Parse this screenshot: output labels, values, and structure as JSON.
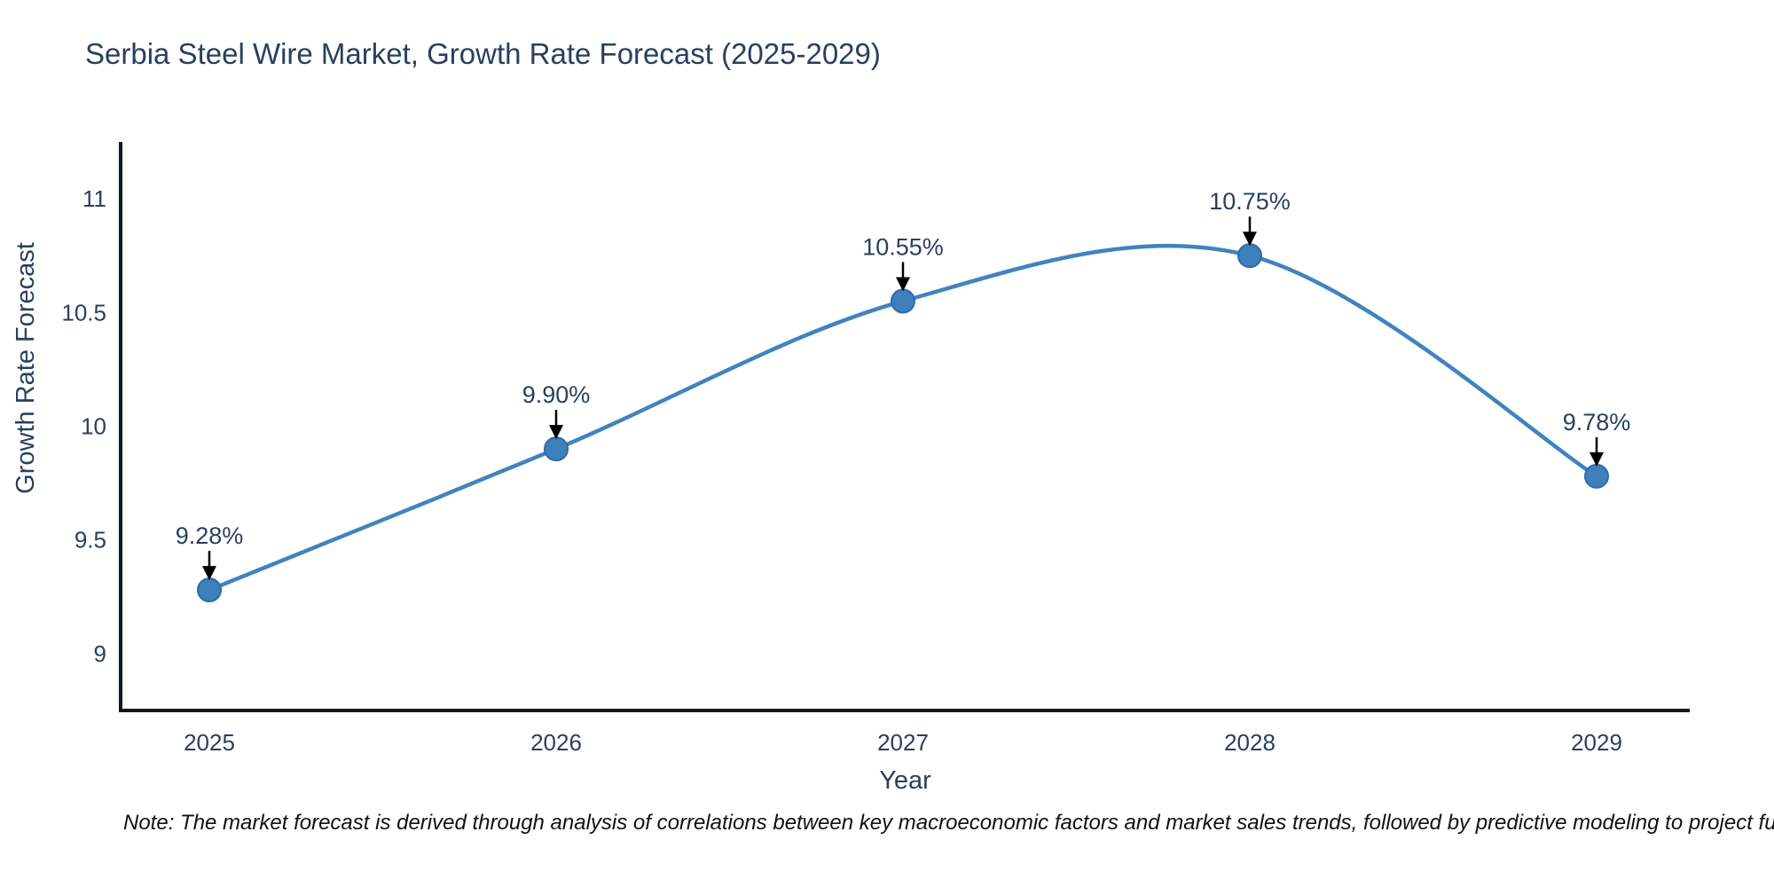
{
  "figure": {
    "title": "Serbia Steel Wire Market, Growth Rate Forecast (2025-2029)",
    "note": "Note: The market forecast is derived through analysis of correlations between key macroeconomic factors and market sales trends, followed by predictive modeling to project future sales."
  },
  "colors": {
    "text": "#2a3f5f",
    "axis_line": "#111827",
    "line": "#4183bd",
    "marker_fill": "#3d80ba",
    "marker_edge": "#2e6ca8",
    "arrow": "#000000",
    "note_text": "#111111",
    "background": "#ffffff"
  },
  "chart_data": {
    "type": "line",
    "line_shape": "spline",
    "title": "Serbia Steel Wire Market, Growth Rate Forecast (2025-2029)",
    "x": [
      "2025",
      "2026",
      "2027",
      "2028",
      "2029"
    ],
    "series": [
      {
        "name": "Growth Rate Forecast",
        "values": [
          9.28,
          9.9,
          10.55,
          10.75,
          9.78
        ]
      }
    ],
    "point_labels": [
      "9.28%",
      "9.90%",
      "10.55%",
      "10.75%",
      "9.78%"
    ],
    "xlabel": "Year",
    "ylabel": "Growth Rate Forecast",
    "yticks": [
      9,
      9.5,
      10,
      10.5,
      11
    ],
    "ytick_labels": [
      "9",
      "9.5",
      "10",
      "10.5",
      "11"
    ],
    "ylim": [
      8.75,
      11.25
    ],
    "grid": false,
    "legend": false,
    "markers": true,
    "annotations": "percentage value labels with black down-arrows above each data point"
  }
}
